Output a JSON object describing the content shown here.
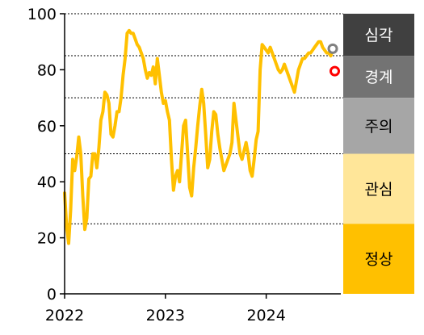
{
  "chart_data": {
    "type": "line",
    "title": "",
    "xlabel": "",
    "ylabel": "",
    "xlim": [
      2022.0,
      2024.74
    ],
    "ylim": [
      0,
      100
    ],
    "y_ticks": [
      0,
      20,
      40,
      60,
      80,
      100
    ],
    "x_ticks": [
      {
        "value": 2022,
        "label": "2022"
      },
      {
        "value": 2023,
        "label": "2023"
      },
      {
        "value": 2024,
        "label": "2024"
      }
    ],
    "grid": "horizontal dotted lines at zone thresholds",
    "threshold_lines": [
      25,
      50,
      70,
      85,
      100
    ],
    "zones": [
      {
        "label": "심각",
        "from": 85,
        "to": 100,
        "color": "#404040",
        "text_color": "#ffffff"
      },
      {
        "label": "경계",
        "from": 70,
        "to": 85,
        "color": "#737373",
        "text_color": "#ffffff"
      },
      {
        "label": "주의",
        "from": 50,
        "to": 70,
        "color": "#a6a6a6",
        "text_color": "#000000"
      },
      {
        "label": "관심",
        "from": 25,
        "to": 50,
        "color": "#ffe699",
        "text_color": "#000000"
      },
      {
        "label": "정상",
        "from": 0,
        "to": 25,
        "color": "#ffc000",
        "text_color": "#000000"
      }
    ],
    "series": [
      {
        "color": "#ffc000",
        "x": [
          2022.0,
          2022.02,
          2022.04,
          2022.06,
          2022.08,
          2022.1,
          2022.12,
          2022.14,
          2022.16,
          2022.18,
          2022.2,
          2022.22,
          2022.24,
          2022.26,
          2022.28,
          2022.3,
          2022.32,
          2022.34,
          2022.36,
          2022.38,
          2022.4,
          2022.42,
          2022.44,
          2022.46,
          2022.48,
          2022.5,
          2022.52,
          2022.54,
          2022.56,
          2022.58,
          2022.6,
          2022.62,
          2022.64,
          2022.66,
          2022.68,
          2022.7,
          2022.72,
          2022.74,
          2022.76,
          2022.78,
          2022.8,
          2022.82,
          2022.84,
          2022.86,
          2022.88,
          2022.9,
          2022.92,
          2022.94,
          2022.96,
          2022.98,
          2023.0,
          2023.02,
          2023.04,
          2023.06,
          2023.08,
          2023.1,
          2023.12,
          2023.14,
          2023.16,
          2023.18,
          2023.2,
          2023.22,
          2023.24,
          2023.26,
          2023.28,
          2023.3,
          2023.32,
          2023.34,
          2023.36,
          2023.38,
          2023.4,
          2023.42,
          2023.44,
          2023.46,
          2023.48,
          2023.5,
          2023.52,
          2023.54,
          2023.56,
          2023.58,
          2023.6,
          2023.62,
          2023.64,
          2023.66,
          2023.68,
          2023.7,
          2023.72,
          2023.74,
          2023.76,
          2023.78,
          2023.8,
          2023.82,
          2023.84,
          2023.86,
          2023.88,
          2023.9,
          2023.92,
          2023.94,
          2023.96,
          2023.98,
          2024.0,
          2024.02,
          2024.04,
          2024.06,
          2024.08,
          2024.1,
          2024.12,
          2024.14,
          2024.16,
          2024.18,
          2024.2,
          2024.22,
          2024.24,
          2024.26,
          2024.28,
          2024.3,
          2024.32,
          2024.34,
          2024.36,
          2024.38,
          2024.4,
          2024.42,
          2024.44,
          2024.46,
          2024.48,
          2024.5,
          2024.52,
          2024.54,
          2024.56,
          2024.58,
          2024.6,
          2024.62,
          2024.64,
          2024.66
        ],
        "y": [
          36,
          24,
          18,
          30,
          48,
          44,
          49,
          56,
          50,
          35,
          23,
          27,
          41,
          42,
          50,
          50,
          45,
          52,
          62,
          65,
          72,
          71,
          68,
          57,
          56,
          60,
          65,
          65,
          70,
          78,
          84,
          93,
          94,
          93,
          93,
          91,
          89,
          88,
          86,
          84,
          80,
          77,
          79,
          78,
          81,
          75,
          84,
          78,
          72,
          68,
          69,
          65,
          62,
          48,
          37,
          42,
          44,
          40,
          50,
          60,
          62,
          50,
          38,
          35,
          45,
          52,
          60,
          67,
          73,
          68,
          57,
          45,
          48,
          58,
          65,
          64,
          57,
          52,
          48,
          44,
          46,
          48,
          50,
          54,
          68,
          62,
          56,
          50,
          48,
          51,
          54,
          50,
          44,
          42,
          48,
          55,
          58,
          80,
          89,
          88,
          87,
          86,
          88,
          86,
          84,
          82,
          80,
          79,
          80,
          82,
          80,
          78,
          76,
          74,
          72,
          76,
          80,
          82,
          84,
          84,
          85,
          86,
          86,
          87,
          88,
          89,
          90,
          90,
          88,
          87,
          86,
          86,
          85,
          87
        ]
      }
    ],
    "markers": [
      {
        "x": 2024.66,
        "y": 87.5,
        "color": "#808080"
      },
      {
        "x": 2024.68,
        "y": 79.5,
        "color": "#ff0000"
      }
    ]
  }
}
